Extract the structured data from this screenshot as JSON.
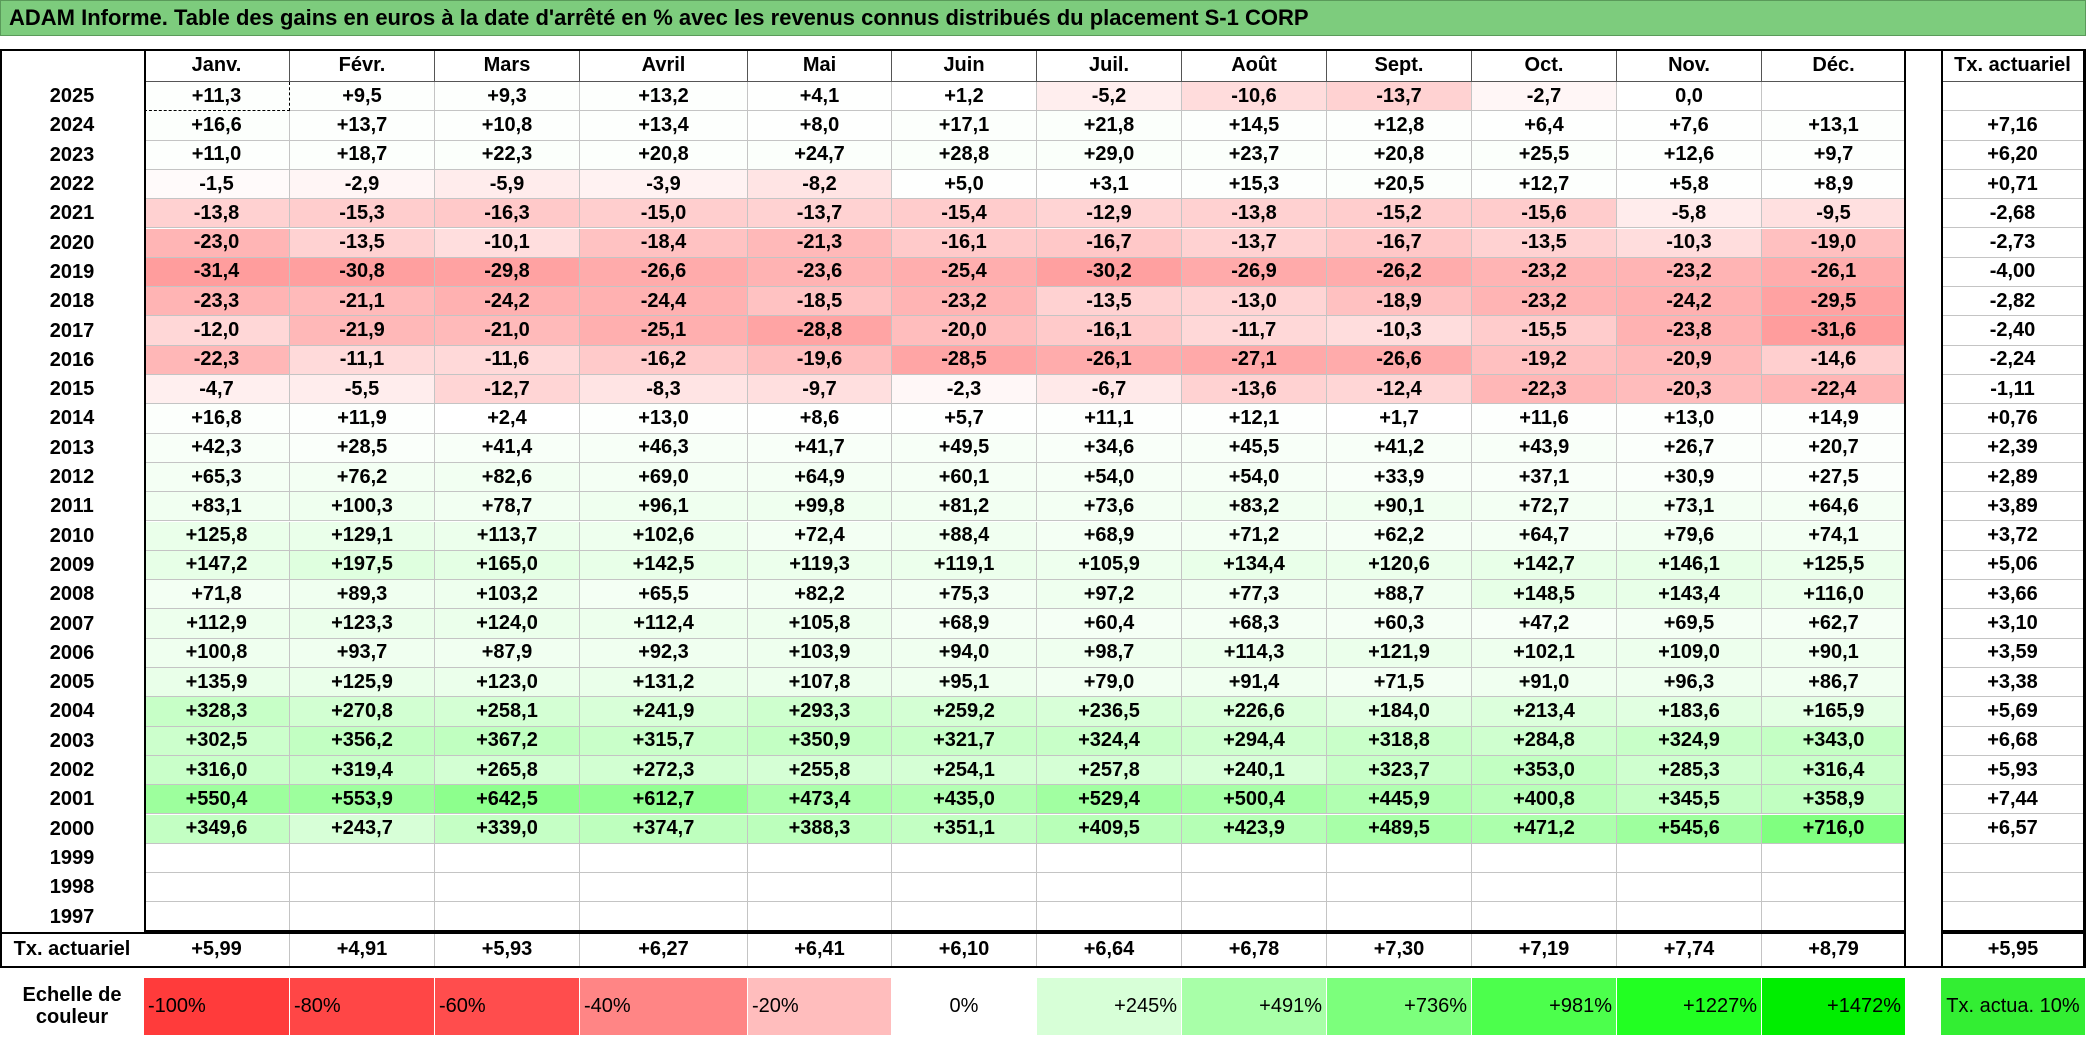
{
  "title": "ADAM Informe. Table des gains en euros à la date d'arrêté en % avec les revenus connus distribués du placement S-1 CORP",
  "columns": [
    "Janv.",
    "Févr.",
    "Mars",
    "Avril",
    "Mai",
    "Juin",
    "Juil.",
    "Août",
    "Sept.",
    "Oct.",
    "Nov.",
    "Déc."
  ],
  "rate_header": "Tx. actuariel",
  "rows": [
    {
      "year": "2025",
      "values": [
        "+11,3",
        "+9,5",
        "+9,3",
        "+13,2",
        "+4,1",
        "+1,2",
        "-5,2",
        "-10,6",
        "-13,7",
        "-2,7",
        "0,0",
        null
      ],
      "rate": null
    },
    {
      "year": "2024",
      "values": [
        "+16,6",
        "+13,7",
        "+10,8",
        "+13,4",
        "+8,0",
        "+17,1",
        "+21,8",
        "+14,5",
        "+12,8",
        "+6,4",
        "+7,6",
        "+13,1"
      ],
      "rate": "+7,16"
    },
    {
      "year": "2023",
      "values": [
        "+11,0",
        "+18,7",
        "+22,3",
        "+20,8",
        "+24,7",
        "+28,8",
        "+29,0",
        "+23,7",
        "+20,8",
        "+25,5",
        "+12,6",
        "+9,7"
      ],
      "rate": "+6,20"
    },
    {
      "year": "2022",
      "values": [
        "-1,5",
        "-2,9",
        "-5,9",
        "-3,9",
        "-8,2",
        "+5,0",
        "+3,1",
        "+15,3",
        "+20,5",
        "+12,7",
        "+5,8",
        "+8,9"
      ],
      "rate": "+0,71"
    },
    {
      "year": "2021",
      "values": [
        "-13,8",
        "-15,3",
        "-16,3",
        "-15,0",
        "-13,7",
        "-15,4",
        "-12,9",
        "-13,8",
        "-15,2",
        "-15,6",
        "-5,8",
        "-9,5"
      ],
      "rate": "-2,68"
    },
    {
      "year": "2020",
      "values": [
        "-23,0",
        "-13,5",
        "-10,1",
        "-18,4",
        "-21,3",
        "-16,1",
        "-16,7",
        "-13,7",
        "-16,7",
        "-13,5",
        "-10,3",
        "-19,0"
      ],
      "rate": "-2,73"
    },
    {
      "year": "2019",
      "values": [
        "-31,4",
        "-30,8",
        "-29,8",
        "-26,6",
        "-23,6",
        "-25,4",
        "-30,2",
        "-26,9",
        "-26,2",
        "-23,2",
        "-23,2",
        "-26,1"
      ],
      "rate": "-4,00"
    },
    {
      "year": "2018",
      "values": [
        "-23,3",
        "-21,1",
        "-24,2",
        "-24,4",
        "-18,5",
        "-23,2",
        "-13,5",
        "-13,0",
        "-18,9",
        "-23,2",
        "-24,2",
        "-29,5"
      ],
      "rate": "-2,82"
    },
    {
      "year": "2017",
      "values": [
        "-12,0",
        "-21,9",
        "-21,0",
        "-25,1",
        "-28,8",
        "-20,0",
        "-16,1",
        "-11,7",
        "-10,3",
        "-15,5",
        "-23,8",
        "-31,6"
      ],
      "rate": "-2,40"
    },
    {
      "year": "2016",
      "values": [
        "-22,3",
        "-11,1",
        "-11,6",
        "-16,2",
        "-19,6",
        "-28,5",
        "-26,1",
        "-27,1",
        "-26,6",
        "-19,2",
        "-20,9",
        "-14,6"
      ],
      "rate": "-2,24"
    },
    {
      "year": "2015",
      "values": [
        "-4,7",
        "-5,5",
        "-12,7",
        "-8,3",
        "-9,7",
        "-2,3",
        "-6,7",
        "-13,6",
        "-12,4",
        "-22,3",
        "-20,3",
        "-22,4"
      ],
      "rate": "-1,11"
    },
    {
      "year": "2014",
      "values": [
        "+16,8",
        "+11,9",
        "+2,4",
        "+13,0",
        "+8,6",
        "+5,7",
        "+11,1",
        "+12,1",
        "+1,7",
        "+11,6",
        "+13,0",
        "+14,9"
      ],
      "rate": "+0,76"
    },
    {
      "year": "2013",
      "values": [
        "+42,3",
        "+28,5",
        "+41,4",
        "+46,3",
        "+41,7",
        "+49,5",
        "+34,6",
        "+45,5",
        "+41,2",
        "+43,9",
        "+26,7",
        "+20,7"
      ],
      "rate": "+2,39"
    },
    {
      "year": "2012",
      "values": [
        "+65,3",
        "+76,2",
        "+82,6",
        "+69,0",
        "+64,9",
        "+60,1",
        "+54,0",
        "+54,0",
        "+33,9",
        "+37,1",
        "+30,9",
        "+27,5"
      ],
      "rate": "+2,89"
    },
    {
      "year": "2011",
      "values": [
        "+83,1",
        "+100,3",
        "+78,7",
        "+96,1",
        "+99,8",
        "+81,2",
        "+73,6",
        "+83,2",
        "+90,1",
        "+72,7",
        "+73,1",
        "+64,6"
      ],
      "rate": "+3,89"
    },
    {
      "year": "2010",
      "values": [
        "+125,8",
        "+129,1",
        "+113,7",
        "+102,6",
        "+72,4",
        "+88,4",
        "+68,9",
        "+71,2",
        "+62,2",
        "+64,7",
        "+79,6",
        "+74,1"
      ],
      "rate": "+3,72"
    },
    {
      "year": "2009",
      "values": [
        "+147,2",
        "+197,5",
        "+165,0",
        "+142,5",
        "+119,3",
        "+119,1",
        "+105,9",
        "+134,4",
        "+120,6",
        "+142,7",
        "+146,1",
        "+125,5"
      ],
      "rate": "+5,06"
    },
    {
      "year": "2008",
      "values": [
        "+71,8",
        "+89,3",
        "+103,2",
        "+65,5",
        "+82,2",
        "+75,3",
        "+97,2",
        "+77,3",
        "+88,7",
        "+148,5",
        "+143,4",
        "+116,0"
      ],
      "rate": "+3,66"
    },
    {
      "year": "2007",
      "values": [
        "+112,9",
        "+123,3",
        "+124,0",
        "+112,4",
        "+105,8",
        "+68,9",
        "+60,4",
        "+68,3",
        "+60,3",
        "+47,2",
        "+69,5",
        "+62,7"
      ],
      "rate": "+3,10"
    },
    {
      "year": "2006",
      "values": [
        "+100,8",
        "+93,7",
        "+87,9",
        "+92,3",
        "+103,9",
        "+94,0",
        "+98,7",
        "+114,3",
        "+121,9",
        "+102,1",
        "+109,0",
        "+90,1"
      ],
      "rate": "+3,59"
    },
    {
      "year": "2005",
      "values": [
        "+135,9",
        "+125,9",
        "+123,0",
        "+131,2",
        "+107,8",
        "+95,1",
        "+79,0",
        "+91,4",
        "+71,5",
        "+91,0",
        "+96,3",
        "+86,7"
      ],
      "rate": "+3,38"
    },
    {
      "year": "2004",
      "values": [
        "+328,3",
        "+270,8",
        "+258,1",
        "+241,9",
        "+293,3",
        "+259,2",
        "+236,5",
        "+226,6",
        "+184,0",
        "+213,4",
        "+183,6",
        "+165,9"
      ],
      "rate": "+5,69"
    },
    {
      "year": "2003",
      "values": [
        "+302,5",
        "+356,2",
        "+367,2",
        "+315,7",
        "+350,9",
        "+321,7",
        "+324,4",
        "+294,4",
        "+318,8",
        "+284,8",
        "+324,9",
        "+343,0"
      ],
      "rate": "+6,68"
    },
    {
      "year": "2002",
      "values": [
        "+316,0",
        "+319,4",
        "+265,8",
        "+272,3",
        "+255,8",
        "+254,1",
        "+257,8",
        "+240,1",
        "+323,7",
        "+353,0",
        "+285,3",
        "+316,4"
      ],
      "rate": "+5,93"
    },
    {
      "year": "2001",
      "values": [
        "+550,4",
        "+553,9",
        "+642,5",
        "+612,7",
        "+473,4",
        "+435,0",
        "+529,4",
        "+500,4",
        "+445,9",
        "+400,8",
        "+345,5",
        "+358,9"
      ],
      "rate": "+7,44"
    },
    {
      "year": "2000",
      "values": [
        "+349,6",
        "+243,7",
        "+339,0",
        "+374,7",
        "+388,3",
        "+351,1",
        "+409,5",
        "+423,9",
        "+489,5",
        "+471,2",
        "+545,6",
        "+716,0"
      ],
      "rate": "+6,57"
    },
    {
      "year": "1999",
      "values": [
        null,
        null,
        null,
        null,
        null,
        null,
        null,
        null,
        null,
        null,
        null,
        null
      ],
      "rate": null
    },
    {
      "year": "1998",
      "values": [
        null,
        null,
        null,
        null,
        null,
        null,
        null,
        null,
        null,
        null,
        null,
        null
      ],
      "rate": null
    },
    {
      "year": "1997",
      "values": [
        null,
        null,
        null,
        null,
        null,
        null,
        null,
        null,
        null,
        null,
        null,
        null
      ],
      "rate": null
    }
  ],
  "footer": {
    "label": "Tx. actuariel",
    "values": [
      "+5,99",
      "+4,91",
      "+5,93",
      "+6,27",
      "+6,41",
      "+6,10",
      "+6,64",
      "+6,78",
      "+7,30",
      "+7,19",
      "+7,74",
      "+8,79"
    ],
    "rate": "+5,95"
  },
  "scale": {
    "label": "Echelle de couleur",
    "steps": [
      "-100%",
      "-80%",
      "-60%",
      "-40%",
      "-20%",
      "0%",
      "+245%",
      "+491%",
      "+736%",
      "+981%",
      "+1227%",
      "+1472%"
    ],
    "colors": [
      "#ff3b3b",
      "#ff4646",
      "#ff4d4d",
      "#ff8585",
      "#ffbdbd",
      "#ffffff",
      "#d7ffd7",
      "#a8ffa8",
      "#7cff7c",
      "#4cff4c",
      "#22ff22",
      "#00ee00"
    ],
    "rate_label": "Tx. actua. 10%",
    "rate_color": "#33ee33"
  }
}
